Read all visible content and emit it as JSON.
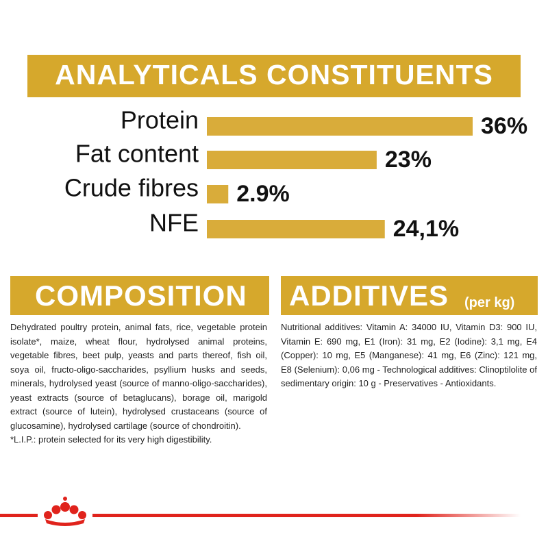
{
  "chart_data": {
    "type": "bar",
    "title": "ANALYTICALS CONSTITUENTS",
    "categories": [
      "Protein",
      "Fat content",
      "Crude fibres",
      "NFE"
    ],
    "values": [
      36,
      23,
      2.9,
      24.1
    ],
    "value_labels": [
      "36%",
      "23%",
      "2.9%",
      "24,1%"
    ],
    "color": "#d9ac3a"
  },
  "composition": {
    "title": "COMPOSITION",
    "text": "Dehydrated poultry protein, animal fats, rice, vegetable protein isolate*, maize, wheat flour, hydrolysed animal proteins, vegetable fibres, beet pulp, yeasts and parts thereof, fish oil, soya oil, fructo-oligo-saccharides, psyllium husks and seeds, minerals, hydrolysed yeast (source of manno-oligo-saccharides), yeast extracts (source of betaglucans), borage oil, marigold extract (source of lutein), hydrolysed crustaceans (source of glucosamine), hydrolysed cartilage (source of chondroitin).",
    "note": "*L.I.P.: protein selected for its very high digestibility."
  },
  "additives": {
    "title": "ADDITIVES",
    "subtitle": "(per kg)",
    "text": "Nutritional additives: Vitamin A: 34000 IU, Vitamin D3: 900 IU, Vitamin E: 690 mg, E1 (Iron): 31 mg, E2 (Iodine): 3,1 mg, E4 (Copper): 10 mg, E5 (Manganese): 41 mg, E6 (Zinc): 121 mg, E8 (Selenium): 0,06 mg - Technological additives: Clinoptilolite of sedimentary origin: 10 g - Preservatives - Antioxidants."
  }
}
